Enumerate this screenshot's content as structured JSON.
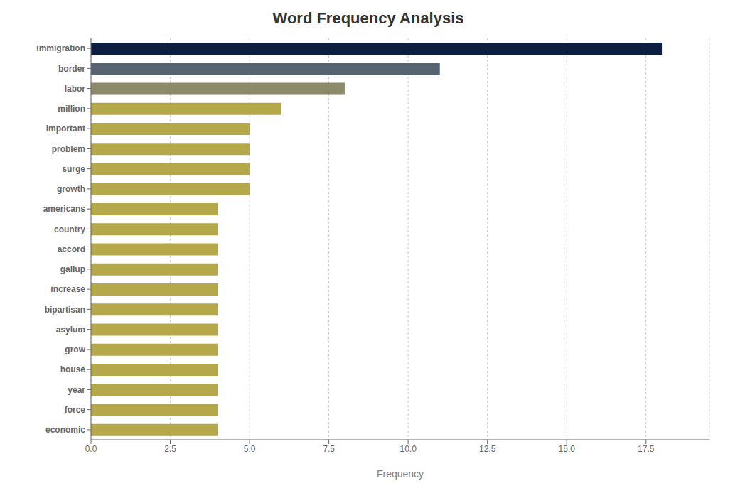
{
  "chart_data": {
    "type": "bar",
    "orientation": "horizontal",
    "title": "Word Frequency Analysis",
    "xlabel": "Frequency",
    "categories": [
      "immigration",
      "border",
      "labor",
      "million",
      "important",
      "problem",
      "surge",
      "growth",
      "americans",
      "country",
      "accord",
      "gallup",
      "increase",
      "bipartisan",
      "asylum",
      "grow",
      "house",
      "year",
      "force",
      "economic"
    ],
    "values": [
      18.0,
      11.0,
      8.0,
      6.0,
      5.0,
      5.0,
      5.0,
      5.0,
      4.0,
      4.0,
      4.0,
      4.0,
      4.0,
      4.0,
      4.0,
      4.0,
      4.0,
      4.0,
      4.0,
      4.0
    ],
    "colors": [
      "#0d1f40",
      "#566370",
      "#8c8a6a",
      "#b5a84a",
      "#b5a84a",
      "#b5a84a",
      "#b5a84a",
      "#b5a84a",
      "#b5a84a",
      "#b5a84a",
      "#b5a84a",
      "#b5a84a",
      "#b5a84a",
      "#b5a84a",
      "#b5a84a",
      "#b5a84a",
      "#b5a84a",
      "#b5a84a",
      "#b5a84a",
      "#b5a84a"
    ],
    "xlim": [
      0,
      19.5
    ],
    "xticks": [
      {
        "value": 0,
        "label": "0.0"
      },
      2.5,
      {
        "value": 5,
        "label": "5.0"
      },
      7.5,
      {
        "value": 10,
        "label": "10.0"
      },
      12.5,
      {
        "value": 15,
        "label": "15.0"
      },
      17.5
    ],
    "grid": true
  }
}
